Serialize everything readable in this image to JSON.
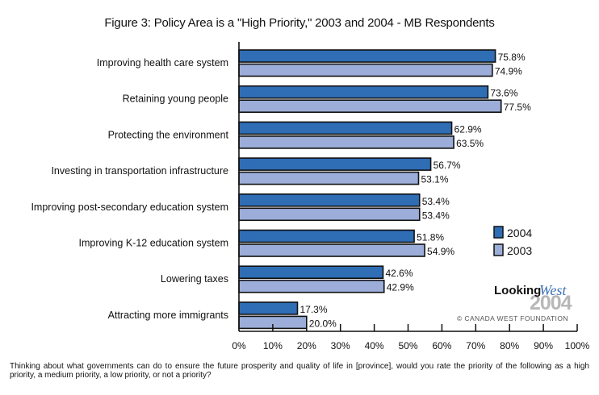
{
  "chart_data": {
    "type": "bar",
    "orientation": "horizontal",
    "title": "Figure 3: Policy Area is a \"High Priority,\" 2003 and 2004 - MB Respondents",
    "xlabel": "",
    "ylabel": "",
    "xlim": [
      0,
      100
    ],
    "x_ticks": [
      "0%",
      "10%",
      "20%",
      "30%",
      "40%",
      "50%",
      "60%",
      "70%",
      "80%",
      "90%",
      "100%"
    ],
    "grid": false,
    "legend_position": "right",
    "categories": [
      "Improving health care system",
      "Retaining young people",
      "Protecting the environment",
      "Investing in transportation infrastructure",
      "Improving post-secondary education system",
      "Improving K-12 education system",
      "Lowering taxes",
      "Attracting more immigrants"
    ],
    "series": [
      {
        "name": "2004",
        "color": "#2f6db5",
        "values": [
          75.8,
          73.6,
          62.9,
          56.7,
          53.4,
          51.8,
          42.6,
          17.3
        ],
        "labels": [
          "75.8%",
          "73.6%",
          "62.9%",
          "56.7%",
          "53.4%",
          "51.8%",
          "42.6%",
          "17.3%"
        ]
      },
      {
        "name": "2003",
        "color": "#9badd8",
        "values": [
          74.9,
          77.5,
          63.5,
          53.1,
          53.4,
          54.9,
          42.9,
          20.0
        ],
        "labels": [
          "74.9%",
          "77.5%",
          "63.5%",
          "53.1%",
          "53.4%",
          "54.9%",
          "42.9%",
          "20.0%"
        ]
      }
    ]
  },
  "logo": {
    "word": "Looking",
    "accent": "West",
    "year": "2004",
    "copyright": "© CANADA WEST FOUNDATION"
  },
  "footnote": "Thinking about what governments can do to ensure the future prosperity and quality of life in [province], would you rate the priority of the following as a high priority, a medium priority, a low priority, or not a priority?"
}
